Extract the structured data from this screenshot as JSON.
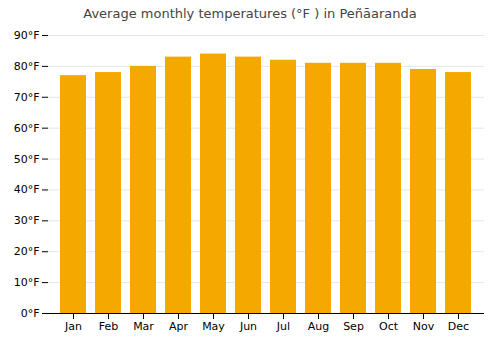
{
  "chart_data": {
    "type": "bar",
    "title": "Average monthly temperatures (°F ) in Peñāaranda",
    "categories": [
      "Jan",
      "Feb",
      "Mar",
      "Apr",
      "May",
      "Jun",
      "Jul",
      "Aug",
      "Sep",
      "Oct",
      "Nov",
      "Dec"
    ],
    "values": [
      77,
      78,
      80,
      83,
      84,
      83,
      82,
      81,
      81,
      81,
      79,
      78
    ],
    "color": "#F5A800",
    "ylim": [
      0,
      90
    ],
    "yticks": [
      {
        "value": 0,
        "label": "0°F"
      },
      {
        "value": 10,
        "label": "10°F"
      },
      {
        "value": 20,
        "label": "20°F"
      },
      {
        "value": 30,
        "label": "30°F"
      },
      {
        "value": 40,
        "label": "40°F"
      },
      {
        "value": 50,
        "label": "50°F"
      },
      {
        "value": 60,
        "label": "60°F"
      },
      {
        "value": 70,
        "label": "70°F"
      },
      {
        "value": 80,
        "label": "80°F"
      },
      {
        "value": 90,
        "label": "90°F"
      }
    ],
    "grid": true
  }
}
